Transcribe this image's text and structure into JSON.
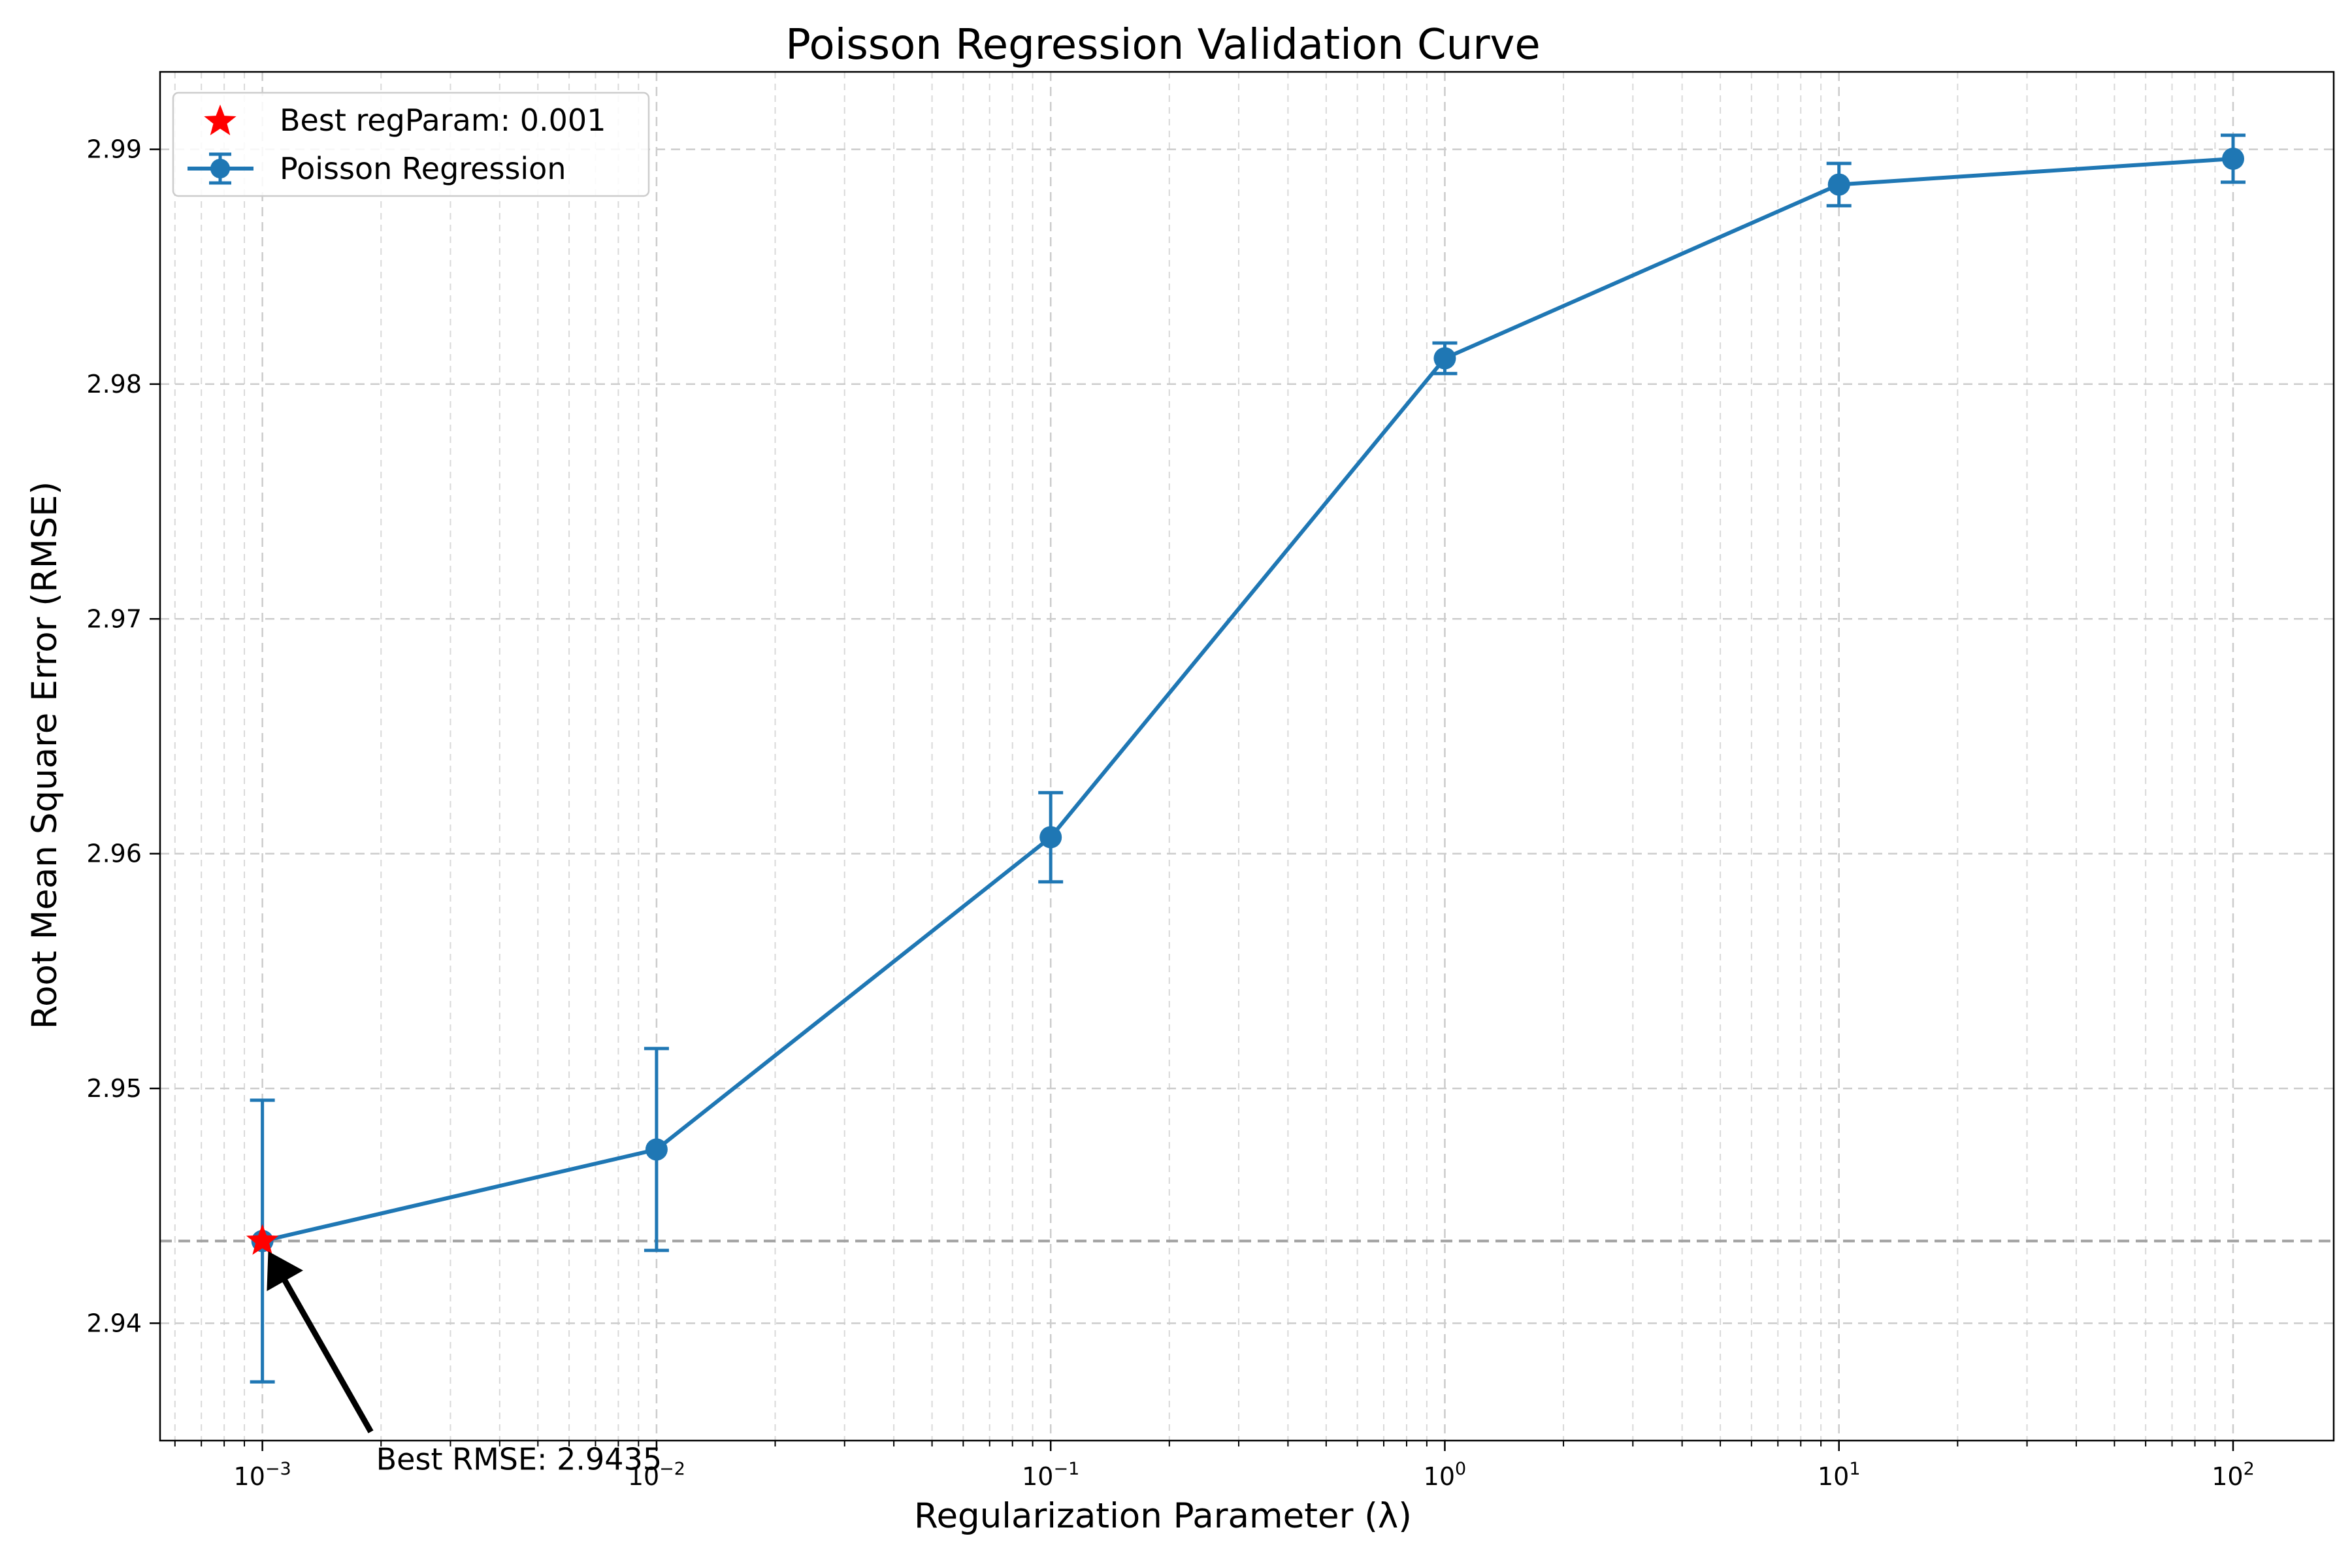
{
  "chart_data": {
    "type": "line",
    "title": "Poisson Regression Validation Curve",
    "xlabel": "Regularization Parameter (λ)",
    "ylabel": "Root Mean Square Error (RMSE)",
    "x_scale": "log",
    "xlim": [
      0.00055,
      180
    ],
    "ylim": [
      2.935,
      2.9933
    ],
    "grid": true,
    "legend_position": "top-left",
    "x_ticks": [
      {
        "value": 0.001,
        "base": "10",
        "exp": "−3"
      },
      {
        "value": 0.01,
        "base": "10",
        "exp": "−2"
      },
      {
        "value": 0.1,
        "base": "10",
        "exp": "−1"
      },
      {
        "value": 1,
        "base": "10",
        "exp": "0"
      },
      {
        "value": 10,
        "base": "10",
        "exp": "1"
      },
      {
        "value": 100,
        "base": "10",
        "exp": "2"
      }
    ],
    "y_ticks": [
      {
        "value": 2.94,
        "label": "2.94"
      },
      {
        "value": 2.95,
        "label": "2.95"
      },
      {
        "value": 2.96,
        "label": "2.96"
      },
      {
        "value": 2.97,
        "label": "2.97"
      },
      {
        "value": 2.98,
        "label": "2.98"
      },
      {
        "value": 2.99,
        "label": "2.99"
      }
    ],
    "series": [
      {
        "name": "Poisson Regression",
        "color": "#1f77b4",
        "x": [
          0.001,
          0.01,
          0.1,
          1,
          10,
          100
        ],
        "y": [
          2.9435,
          2.9474,
          2.9607,
          2.9811,
          2.9885,
          2.9896
        ],
        "yerr": [
          0.006,
          0.0043,
          0.0019,
          0.00065,
          0.0009,
          0.001
        ]
      }
    ],
    "best_point": {
      "name": "Best regParam: 0.001",
      "x": 0.001,
      "y": 2.9435,
      "color": "#ff0000"
    },
    "reference_line": {
      "y": 2.9435,
      "color": "#a0a0a0",
      "style": "dashed"
    },
    "annotation": {
      "text": "Best RMSE: 2.9435",
      "target_x": 0.001,
      "target_y": 2.9435
    }
  }
}
